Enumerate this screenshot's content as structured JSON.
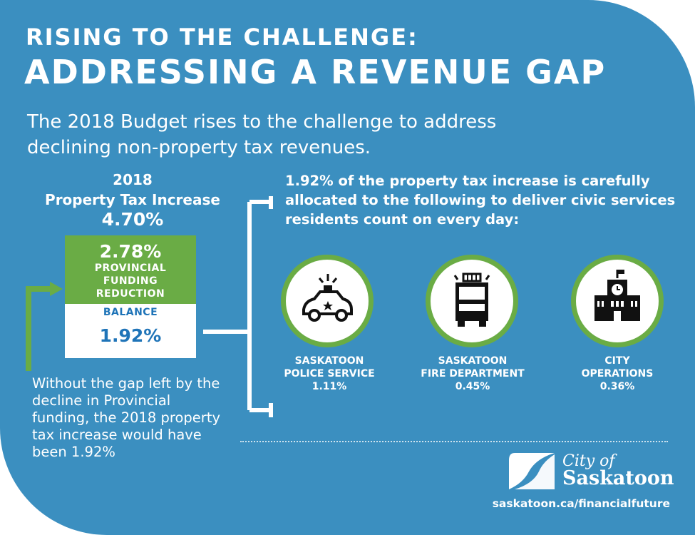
{
  "header": {
    "title_line1": "RISING TO THE CHALLENGE:",
    "title_line2": "ADDRESSING A REVENUE GAP",
    "intro": "The 2018 Budget rises to the challenge to address declining non-property tax revenues."
  },
  "left": {
    "year": "2018",
    "label": "Property Tax Increase",
    "total_pct": "4.70%",
    "provincial_pct": "2.78%",
    "provincial_line1": "PROVINCIAL",
    "provincial_line2": "FUNDING",
    "provincial_line3": "REDUCTION",
    "balance_label": "BALANCE",
    "balance_pct": "1.92%",
    "note": "Without the gap left by the decline in Provincial funding, the 2018 property tax increase would have been 1.92%"
  },
  "right": {
    "heading": "1.92% of the property tax increase is carefully allocated to the following to deliver civic services residents count on every day:",
    "services": [
      {
        "line1": "SASKATOON",
        "line2": "POLICE SERVICE",
        "pct": "1.11%",
        "icon": "police-car-icon"
      },
      {
        "line1": "SASKATOON",
        "line2": "FIRE DEPARTMENT",
        "pct": "0.45%",
        "icon": "fire-truck-icon"
      },
      {
        "line1": "CITY",
        "line2": "OPERATIONS",
        "pct": "0.36%",
        "icon": "city-hall-icon"
      }
    ]
  },
  "footer": {
    "logo_line1": "City of",
    "logo_line2": "Saskatoon",
    "url": "saskatoon.ca/financialfuture"
  },
  "colors": {
    "blue": "#3b8fc0",
    "green": "#6aac45",
    "dark_blue_text": "#1f74b8",
    "white": "#ffffff"
  }
}
